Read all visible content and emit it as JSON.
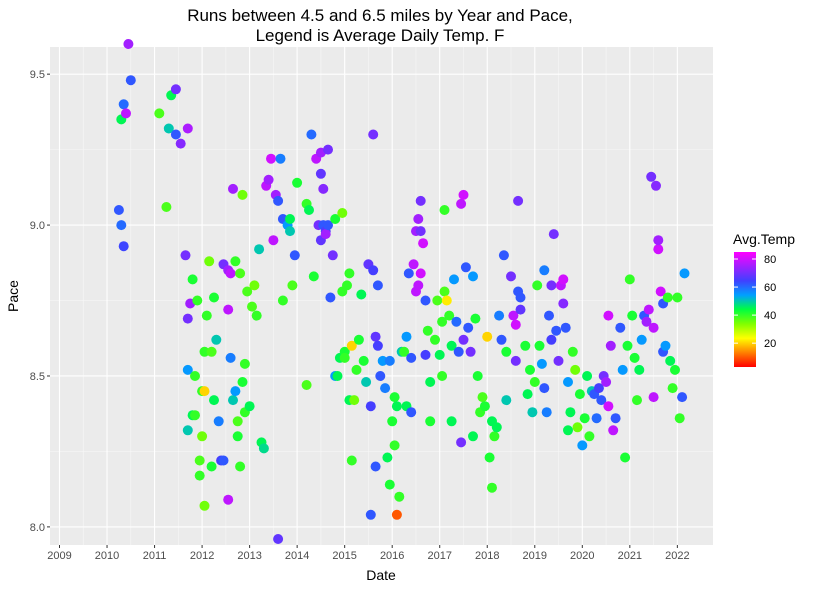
{
  "chart_data": {
    "type": "scatter",
    "title": "Runs between 4.5 and 6.5 miles by Year and Pace,",
    "subtitle": "Legend is Average Daily Temp. F",
    "xlabel": "Date",
    "ylabel": "Pace",
    "xlim": [
      2008.8,
      2022.75
    ],
    "ylim": [
      7.94,
      9.59
    ],
    "x_ticks": [
      2009,
      2010,
      2011,
      2012,
      2013,
      2014,
      2015,
      2016,
      2017,
      2018,
      2019,
      2020,
      2021,
      2022
    ],
    "y_ticks": [
      8.0,
      8.5,
      9.0,
      9.5
    ],
    "y_tick_labels": [
      "8.0",
      "8.5",
      "9.0",
      "9.5"
    ],
    "grid": true,
    "legend": {
      "title": "Avg.Temp",
      "position": "right",
      "range": [
        3,
        85
      ],
      "ticks": [
        20,
        40,
        60,
        80
      ],
      "colors": [
        "#ff0000",
        "#ff8000",
        "#ffff00",
        "#80ff00",
        "#00ff40",
        "#00a0ff",
        "#4040ff",
        "#a020ff",
        "#ff00ff"
      ]
    },
    "points": [
      [
        2010.25,
        9.05,
        62
      ],
      [
        2010.3,
        9.0,
        60
      ],
      [
        2010.35,
        8.93,
        64
      ],
      [
        2010.3,
        9.35,
        45
      ],
      [
        2010.35,
        9.4,
        60
      ],
      [
        2010.4,
        9.37,
        78
      ],
      [
        2010.45,
        9.6,
        75
      ],
      [
        2010.5,
        9.48,
        62
      ],
      [
        2011.1,
        9.37,
        38
      ],
      [
        2011.25,
        9.06,
        38
      ],
      [
        2011.3,
        9.32,
        50
      ],
      [
        2011.35,
        9.43,
        45
      ],
      [
        2011.45,
        9.45,
        70
      ],
      [
        2011.45,
        9.3,
        62
      ],
      [
        2011.55,
        9.27,
        72
      ],
      [
        2011.7,
        9.32,
        76
      ],
      [
        2011.65,
        8.9,
        70
      ],
      [
        2011.7,
        8.69,
        70
      ],
      [
        2011.75,
        8.74,
        75
      ],
      [
        2011.7,
        8.52,
        55
      ],
      [
        2011.7,
        8.32,
        50
      ],
      [
        2011.8,
        8.37,
        45
      ],
      [
        2011.8,
        8.82,
        42
      ],
      [
        2011.85,
        8.5,
        40
      ],
      [
        2011.85,
        8.37,
        40
      ],
      [
        2011.9,
        8.75,
        40
      ],
      [
        2011.95,
        8.22,
        38
      ],
      [
        2011.95,
        8.17,
        40
      ],
      [
        2012.0,
        8.3,
        35
      ],
      [
        2012.0,
        8.45,
        40
      ],
      [
        2012.05,
        8.07,
        35
      ],
      [
        2012.05,
        8.45,
        20
      ],
      [
        2012.05,
        8.58,
        40
      ],
      [
        2012.1,
        8.7,
        40
      ],
      [
        2012.15,
        8.88,
        35
      ],
      [
        2012.2,
        8.58,
        38
      ],
      [
        2012.2,
        8.2,
        42
      ],
      [
        2012.25,
        8.76,
        42
      ],
      [
        2012.25,
        8.42,
        45
      ],
      [
        2012.3,
        8.62,
        50
      ],
      [
        2012.35,
        8.35,
        58
      ],
      [
        2012.4,
        8.22,
        65
      ],
      [
        2012.45,
        8.87,
        70
      ],
      [
        2012.45,
        8.22,
        62
      ],
      [
        2012.55,
        8.85,
        75
      ],
      [
        2012.6,
        8.84,
        78
      ],
      [
        2012.55,
        8.72,
        78
      ],
      [
        2012.55,
        8.09,
        78
      ],
      [
        2012.6,
        8.56,
        58
      ],
      [
        2012.65,
        9.12,
        75
      ],
      [
        2012.65,
        8.42,
        50
      ],
      [
        2012.7,
        8.45,
        55
      ],
      [
        2012.7,
        8.88,
        40
      ],
      [
        2012.75,
        8.35,
        38
      ],
      [
        2012.75,
        8.3,
        42
      ],
      [
        2012.8,
        8.84,
        38
      ],
      [
        2012.8,
        8.2,
        40
      ],
      [
        2012.85,
        9.1,
        35
      ],
      [
        2012.85,
        8.48,
        42
      ],
      [
        2012.9,
        8.54,
        40
      ],
      [
        2012.9,
        8.38,
        40
      ],
      [
        2012.95,
        8.78,
        38
      ],
      [
        2013.0,
        8.4,
        45
      ],
      [
        2013.05,
        8.73,
        38
      ],
      [
        2013.1,
        8.8,
        35
      ],
      [
        2013.15,
        8.7,
        40
      ],
      [
        2013.2,
        8.92,
        50
      ],
      [
        2013.25,
        8.28,
        45
      ],
      [
        2013.3,
        8.26,
        48
      ],
      [
        2013.35,
        9.13,
        78
      ],
      [
        2013.4,
        9.15,
        75
      ],
      [
        2013.45,
        9.22,
        80
      ],
      [
        2013.5,
        8.95,
        78
      ],
      [
        2013.55,
        9.1,
        75
      ],
      [
        2013.6,
        9.08,
        62
      ],
      [
        2013.6,
        7.96,
        68
      ],
      [
        2013.65,
        9.22,
        58
      ],
      [
        2013.7,
        9.02,
        62
      ],
      [
        2013.7,
        8.75,
        40
      ],
      [
        2013.8,
        9.0,
        55
      ],
      [
        2013.85,
        9.02,
        45
      ],
      [
        2013.85,
        8.98,
        50
      ],
      [
        2013.9,
        8.8,
        38
      ],
      [
        2013.95,
        8.9,
        62
      ],
      [
        2014.0,
        9.14,
        42
      ],
      [
        2014.2,
        8.47,
        38
      ],
      [
        2014.2,
        9.07,
        40
      ],
      [
        2014.25,
        9.05,
        45
      ],
      [
        2014.3,
        9.3,
        60
      ],
      [
        2014.35,
        8.83,
        42
      ],
      [
        2014.4,
        9.22,
        78
      ],
      [
        2014.45,
        9.0,
        70
      ],
      [
        2014.5,
        9.24,
        75
      ],
      [
        2014.5,
        9.17,
        68
      ],
      [
        2014.5,
        8.95,
        68
      ],
      [
        2014.55,
        9.12,
        72
      ],
      [
        2014.55,
        9.0,
        62
      ],
      [
        2014.6,
        8.98,
        66
      ],
      [
        2014.6,
        8.97,
        75
      ],
      [
        2014.65,
        9.25,
        70
      ],
      [
        2014.65,
        9.0,
        62
      ],
      [
        2014.7,
        8.76,
        62
      ],
      [
        2014.75,
        8.9,
        70
      ],
      [
        2014.8,
        9.02,
        42
      ],
      [
        2014.8,
        8.5,
        55
      ],
      [
        2014.85,
        8.5,
        45
      ],
      [
        2014.9,
        8.56,
        45
      ],
      [
        2014.95,
        8.78,
        40
      ],
      [
        2014.95,
        9.04,
        35
      ],
      [
        2015.0,
        8.58,
        42
      ],
      [
        2015.0,
        8.56,
        40
      ],
      [
        2015.05,
        8.8,
        40
      ],
      [
        2015.1,
        8.84,
        40
      ],
      [
        2015.1,
        8.42,
        45
      ],
      [
        2015.15,
        8.6,
        20
      ],
      [
        2015.15,
        8.22,
        40
      ],
      [
        2015.2,
        8.42,
        35
      ],
      [
        2015.25,
        8.52,
        40
      ],
      [
        2015.3,
        8.62,
        42
      ],
      [
        2015.35,
        8.77,
        45
      ],
      [
        2015.4,
        8.55,
        42
      ],
      [
        2015.45,
        8.48,
        50
      ],
      [
        2015.5,
        8.87,
        68
      ],
      [
        2015.55,
        8.4,
        65
      ],
      [
        2015.55,
        8.04,
        62
      ],
      [
        2015.6,
        9.3,
        70
      ],
      [
        2015.6,
        8.85,
        65
      ],
      [
        2015.65,
        8.63,
        68
      ],
      [
        2015.65,
        8.2,
        62
      ],
      [
        2015.7,
        8.8,
        62
      ],
      [
        2015.7,
        8.6,
        65
      ],
      [
        2015.75,
        8.5,
        62
      ],
      [
        2015.8,
        8.55,
        55
      ],
      [
        2015.85,
        8.46,
        58
      ],
      [
        2015.9,
        8.23,
        45
      ],
      [
        2015.95,
        8.55,
        58
      ],
      [
        2015.95,
        8.14,
        42
      ],
      [
        2016.0,
        8.35,
        42
      ],
      [
        2016.05,
        8.43,
        42
      ],
      [
        2016.05,
        8.27,
        40
      ],
      [
        2016.1,
        8.4,
        45
      ],
      [
        2016.1,
        8.04,
        10
      ],
      [
        2016.15,
        8.1,
        40
      ],
      [
        2016.2,
        8.58,
        50
      ],
      [
        2016.25,
        8.58,
        40
      ],
      [
        2016.3,
        8.63,
        55
      ],
      [
        2016.3,
        8.4,
        45
      ],
      [
        2016.35,
        8.84,
        62
      ],
      [
        2016.4,
        8.56,
        62
      ],
      [
        2016.4,
        8.38,
        62
      ],
      [
        2016.45,
        8.87,
        78
      ],
      [
        2016.5,
        8.98,
        75
      ],
      [
        2016.5,
        8.78,
        78
      ],
      [
        2016.55,
        9.02,
        75
      ],
      [
        2016.55,
        8.8,
        78
      ],
      [
        2016.6,
        9.08,
        70
      ],
      [
        2016.6,
        8.98,
        70
      ],
      [
        2016.6,
        8.84,
        80
      ],
      [
        2016.65,
        8.94,
        80
      ],
      [
        2016.7,
        8.75,
        62
      ],
      [
        2016.7,
        8.57,
        65
      ],
      [
        2016.75,
        8.65,
        40
      ],
      [
        2016.8,
        8.48,
        45
      ],
      [
        2016.8,
        8.35,
        42
      ],
      [
        2016.9,
        8.62,
        40
      ],
      [
        2016.95,
        8.75,
        38
      ],
      [
        2017.0,
        8.57,
        45
      ],
      [
        2017.05,
        8.68,
        40
      ],
      [
        2017.05,
        8.5,
        40
      ],
      [
        2017.1,
        9.05,
        40
      ],
      [
        2017.1,
        8.78,
        38
      ],
      [
        2017.15,
        8.75,
        22
      ],
      [
        2017.2,
        8.7,
        40
      ],
      [
        2017.25,
        8.6,
        45
      ],
      [
        2017.25,
        8.35,
        45
      ],
      [
        2017.3,
        8.82,
        55
      ],
      [
        2017.35,
        8.68,
        60
      ],
      [
        2017.4,
        8.58,
        62
      ],
      [
        2017.45,
        9.07,
        78
      ],
      [
        2017.45,
        8.28,
        70
      ],
      [
        2017.5,
        9.1,
        80
      ],
      [
        2017.5,
        8.62,
        70
      ],
      [
        2017.55,
        8.86,
        62
      ],
      [
        2017.6,
        8.66,
        62
      ],
      [
        2017.65,
        8.58,
        70
      ],
      [
        2017.7,
        8.83,
        55
      ],
      [
        2017.7,
        8.3,
        45
      ],
      [
        2017.75,
        8.69,
        42
      ],
      [
        2017.8,
        8.5,
        42
      ],
      [
        2017.85,
        8.38,
        40
      ],
      [
        2017.9,
        8.43,
        38
      ],
      [
        2017.95,
        8.4,
        42
      ],
      [
        2018.0,
        8.63,
        20
      ],
      [
        2018.05,
        8.23,
        42
      ],
      [
        2018.1,
        8.13,
        40
      ],
      [
        2018.1,
        8.35,
        45
      ],
      [
        2018.15,
        8.3,
        40
      ],
      [
        2018.2,
        8.33,
        45
      ],
      [
        2018.25,
        8.7,
        58
      ],
      [
        2018.3,
        8.62,
        62
      ],
      [
        2018.35,
        8.9,
        62
      ],
      [
        2018.4,
        8.42,
        50
      ],
      [
        2018.4,
        8.58,
        42
      ],
      [
        2018.5,
        8.83,
        70
      ],
      [
        2018.55,
        8.7,
        78
      ],
      [
        2018.6,
        8.67,
        80
      ],
      [
        2018.6,
        8.55,
        70
      ],
      [
        2018.65,
        9.08,
        70
      ],
      [
        2018.65,
        8.78,
        62
      ],
      [
        2018.7,
        8.76,
        62
      ],
      [
        2018.7,
        8.72,
        68
      ],
      [
        2018.8,
        8.6,
        42
      ],
      [
        2018.85,
        8.44,
        45
      ],
      [
        2018.9,
        8.52,
        42
      ],
      [
        2018.95,
        8.38,
        50
      ],
      [
        2019.0,
        8.48,
        40
      ],
      [
        2019.05,
        8.8,
        40
      ],
      [
        2019.1,
        8.6,
        42
      ],
      [
        2019.15,
        8.54,
        55
      ],
      [
        2019.2,
        8.85,
        58
      ],
      [
        2019.2,
        8.46,
        62
      ],
      [
        2019.25,
        8.38,
        58
      ],
      [
        2019.3,
        8.7,
        62
      ],
      [
        2019.35,
        8.8,
        70
      ],
      [
        2019.35,
        8.62,
        65
      ],
      [
        2019.4,
        8.97,
        70
      ],
      [
        2019.45,
        8.65,
        62
      ],
      [
        2019.5,
        8.55,
        70
      ],
      [
        2019.55,
        8.8,
        78
      ],
      [
        2019.6,
        8.82,
        80
      ],
      [
        2019.6,
        8.74,
        72
      ],
      [
        2019.65,
        8.66,
        62
      ],
      [
        2019.7,
        8.48,
        55
      ],
      [
        2019.7,
        8.32,
        45
      ],
      [
        2019.75,
        8.38,
        45
      ],
      [
        2019.8,
        8.58,
        40
      ],
      [
        2019.85,
        8.52,
        35
      ],
      [
        2019.9,
        8.33,
        35
      ],
      [
        2019.95,
        8.44,
        42
      ],
      [
        2020.0,
        8.27,
        55
      ],
      [
        2020.05,
        8.36,
        42
      ],
      [
        2020.1,
        8.5,
        45
      ],
      [
        2020.15,
        8.3,
        40
      ],
      [
        2020.2,
        8.45,
        50
      ],
      [
        2020.25,
        8.44,
        62
      ],
      [
        2020.3,
        8.36,
        60
      ],
      [
        2020.35,
        8.46,
        65
      ],
      [
        2020.4,
        8.42,
        62
      ],
      [
        2020.45,
        8.5,
        70
      ],
      [
        2020.5,
        8.48,
        75
      ],
      [
        2020.55,
        8.7,
        80
      ],
      [
        2020.55,
        8.4,
        80
      ],
      [
        2020.6,
        8.6,
        75
      ],
      [
        2020.65,
        8.32,
        78
      ],
      [
        2020.7,
        8.36,
        62
      ],
      [
        2020.8,
        8.66,
        62
      ],
      [
        2020.85,
        8.52,
        55
      ],
      [
        2020.9,
        8.23,
        42
      ],
      [
        2020.95,
        8.6,
        42
      ],
      [
        2021.0,
        8.82,
        40
      ],
      [
        2021.05,
        8.7,
        42
      ],
      [
        2021.1,
        8.56,
        42
      ],
      [
        2021.15,
        8.42,
        40
      ],
      [
        2021.2,
        8.52,
        45
      ],
      [
        2021.25,
        8.62,
        55
      ],
      [
        2021.3,
        8.7,
        62
      ],
      [
        2021.35,
        8.68,
        75
      ],
      [
        2021.4,
        8.72,
        78
      ],
      [
        2021.45,
        9.16,
        70
      ],
      [
        2021.5,
        8.66,
        78
      ],
      [
        2021.5,
        8.43,
        78
      ],
      [
        2021.55,
        9.13,
        72
      ],
      [
        2021.6,
        8.92,
        80
      ],
      [
        2021.6,
        8.95,
        75
      ],
      [
        2021.65,
        8.78,
        80
      ],
      [
        2021.7,
        8.74,
        62
      ],
      [
        2021.7,
        8.58,
        62
      ],
      [
        2021.75,
        8.6,
        55
      ],
      [
        2021.8,
        8.76,
        40
      ],
      [
        2021.85,
        8.55,
        45
      ],
      [
        2021.9,
        8.46,
        40
      ],
      [
        2021.95,
        8.52,
        42
      ],
      [
        2022.0,
        8.76,
        40
      ],
      [
        2022.05,
        8.36,
        40
      ],
      [
        2022.1,
        8.43,
        62
      ],
      [
        2022.15,
        8.84,
        55
      ]
    ]
  }
}
